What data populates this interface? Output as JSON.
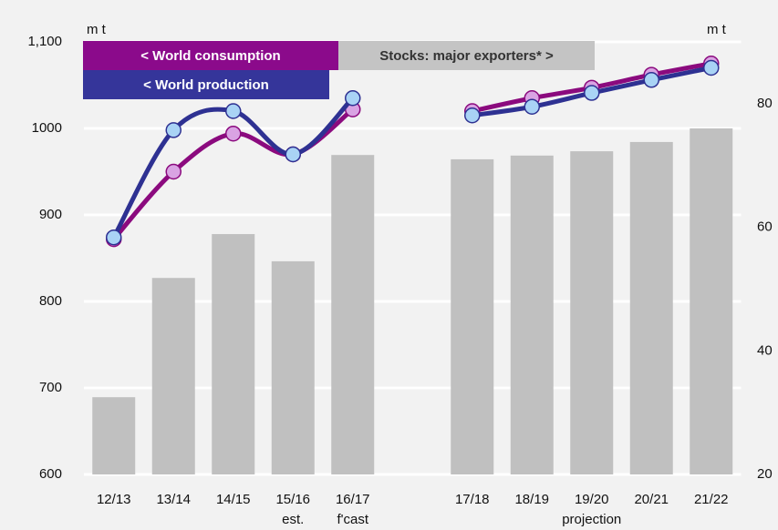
{
  "chart_data": {
    "type": "bar",
    "categories": [
      "12/13",
      "13/14",
      "14/15",
      "15/16",
      "16/17",
      null,
      "17/18",
      "18/19",
      "19/20",
      "20/21",
      "21/22"
    ],
    "annotations": [
      {
        "text": "est.",
        "category": "15/16"
      },
      {
        "text": "f'cast",
        "category": "16/17"
      },
      {
        "text": "projection",
        "category": "19/20"
      }
    ],
    "y_unit": "m t",
    "y2_unit": "m t",
    "ylim": [
      600,
      1100
    ],
    "yticks": [
      600,
      700,
      800,
      900,
      1000,
      {
        "value": 1100,
        "label": "1,100"
      }
    ],
    "y2lim": [
      20,
      90
    ],
    "y2ticks": [
      20,
      40,
      60,
      80
    ],
    "grid": true,
    "legend": "top-left",
    "series": [
      {
        "name": "Stocks: major exporters* >",
        "type": "bar",
        "axis": "y2",
        "color": "#c0c0c0",
        "values": [
          32.5,
          51.8,
          58.9,
          54.5,
          71.7,
          null,
          71.0,
          71.6,
          72.3,
          73.8,
          76.0
        ]
      },
      {
        "name": "< World consumption",
        "type": "line",
        "axis": "y",
        "color": "#8b0a7e",
        "marker_color": "#d9a3e3",
        "values": [
          872,
          950,
          994,
          970,
          1022,
          null,
          1020,
          1035,
          1047,
          1062,
          1075
        ]
      },
      {
        "name": "< World production",
        "type": "line",
        "axis": "y",
        "color": "#2e3192",
        "marker_color": "#a9d3f5",
        "values": [
          874,
          998,
          1020,
          970,
          1035,
          null,
          1015,
          1025,
          1041,
          1056,
          1070
        ]
      }
    ]
  }
}
